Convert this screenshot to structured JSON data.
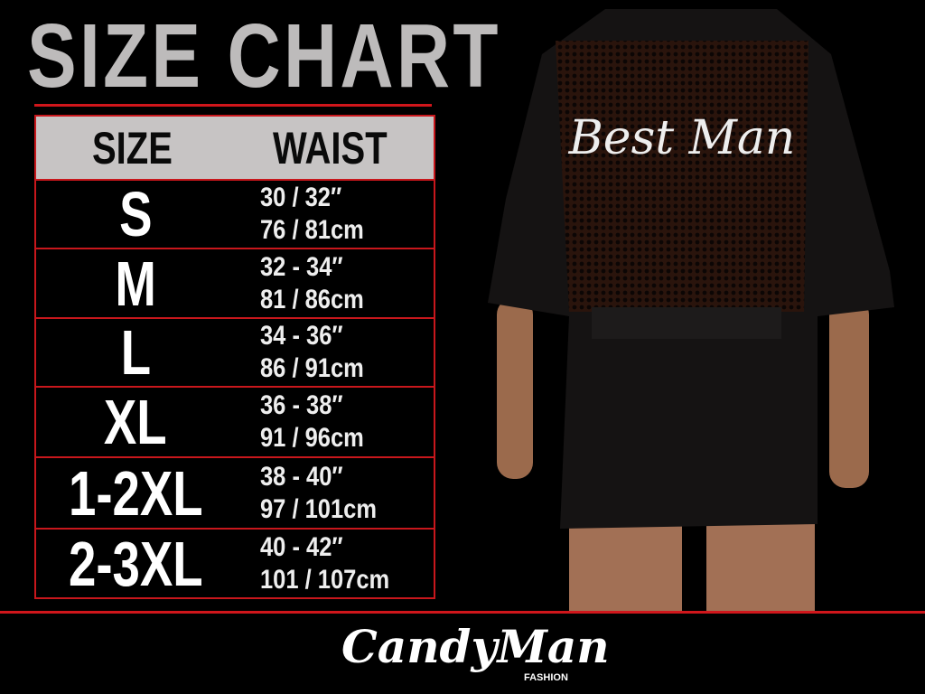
{
  "title": "SIZE CHART",
  "table": {
    "headers": [
      "SIZE",
      "WAIST"
    ],
    "rows": [
      {
        "size": "S",
        "inches": "30 / 32″",
        "cm": "76 / 81cm"
      },
      {
        "size": "M",
        "inches": "32 - 34″",
        "cm": "81 / 86cm"
      },
      {
        "size": "L",
        "inches": "34 - 36″",
        "cm": "86 / 91cm"
      },
      {
        "size": "XL",
        "inches": "36 - 38″",
        "cm": "91 / 96cm"
      },
      {
        "size": "1-2XL",
        "inches": "38 - 40″",
        "cm": "97 / 101cm"
      },
      {
        "size": "2-3XL",
        "inches": "40 - 42″",
        "cm": "101 / 107cm"
      }
    ]
  },
  "photo": {
    "print_text": "Best Man"
  },
  "brand": {
    "name": "CandyMan",
    "sub": "FASHION"
  },
  "colors": {
    "accent": "#d0161b",
    "header_bg": "#c7c4c4",
    "title": "#bdbbbb"
  }
}
